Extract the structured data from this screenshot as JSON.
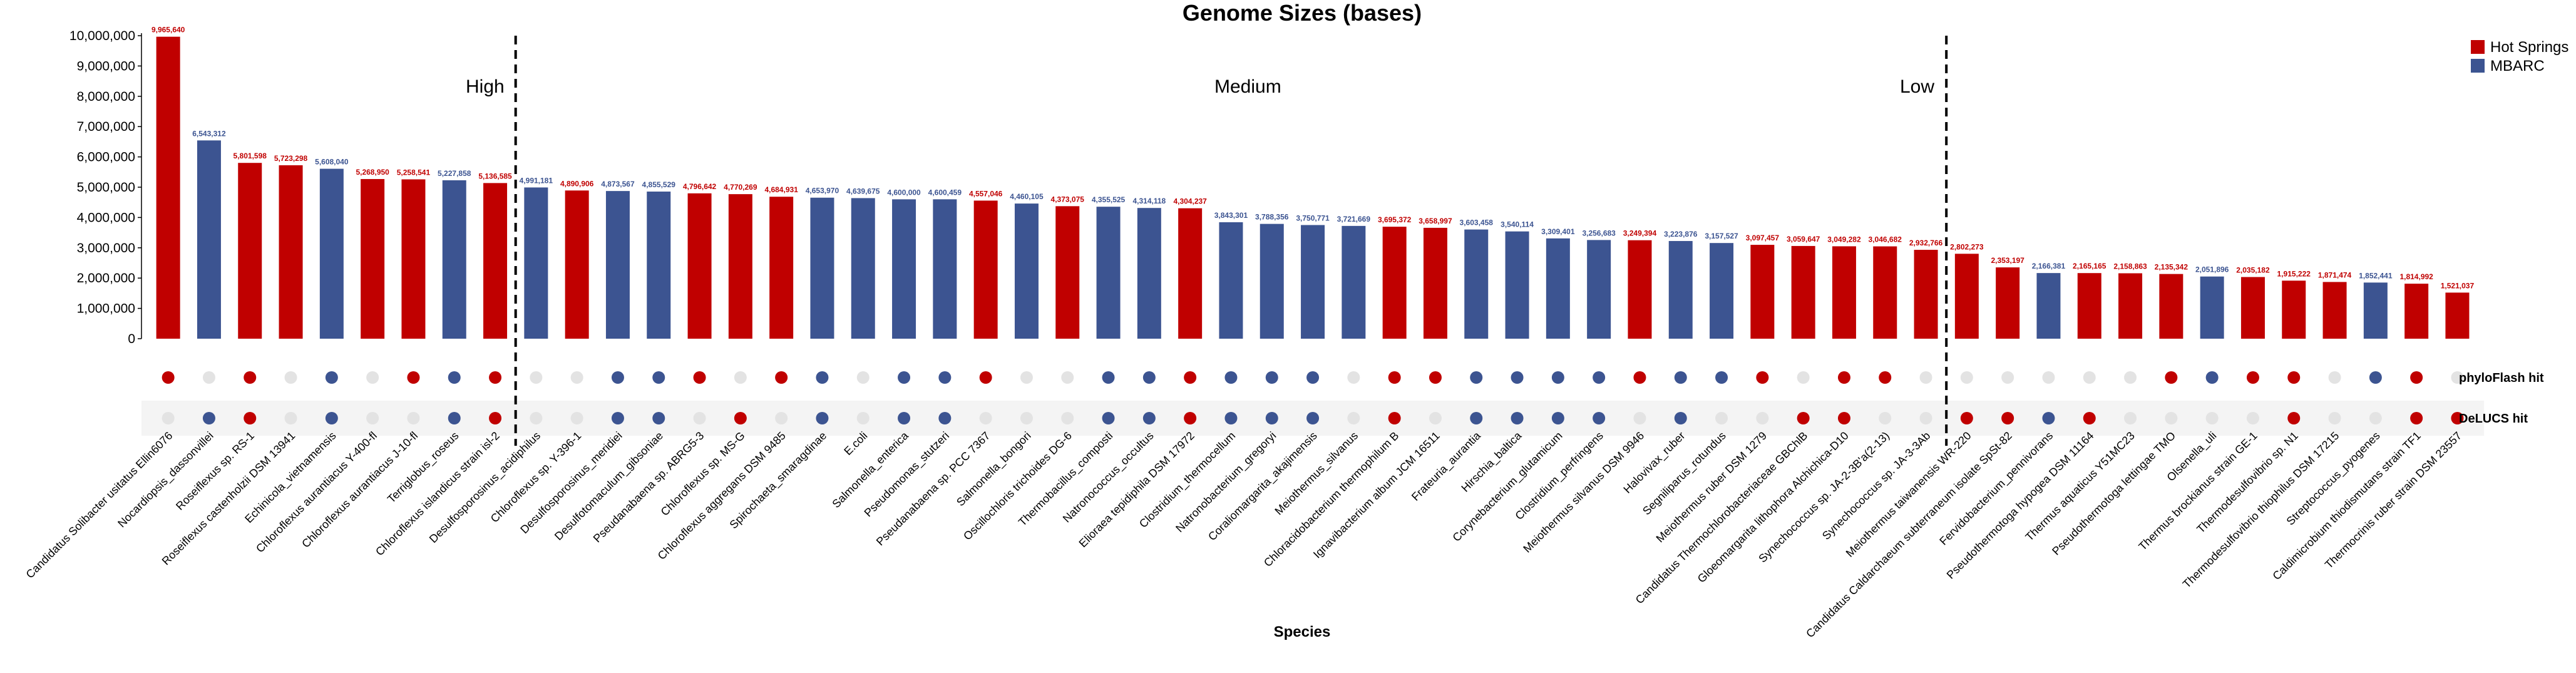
{
  "chart_data": {
    "type": "bar",
    "title": "Genome Sizes (bases)",
    "xlabel": "Species",
    "ylabel": "",
    "ylim": [
      0,
      10000000
    ],
    "yticks": [
      0,
      1000000,
      2000000,
      3000000,
      4000000,
      5000000,
      6000000,
      7000000,
      8000000,
      9000000,
      10000000
    ],
    "ytick_labels": [
      "0",
      "1,000,000",
      "2,000,000",
      "3,000,000",
      "4,000,000",
      "5,000,000",
      "6,000,000",
      "7,000,000",
      "8,000,000",
      "9,000,000",
      "10,000,000"
    ],
    "legend": {
      "placement": "top-right",
      "entries": [
        {
          "name": "Hot Springs",
          "color": "#c00000"
        },
        {
          "name": "MBARC",
          "color": "#3c5491"
        }
      ]
    },
    "regions": [
      "High",
      "Medium",
      "Low"
    ],
    "region_boundaries_after_index": [
      8,
      43
    ],
    "indicator_rows": [
      "phyloFlash hit",
      "DeLUCS hit"
    ],
    "colors": {
      "hot_springs": "#c00000",
      "mbarc": "#3c5491",
      "miss": "#e3e3e3",
      "row_band": "#f4f4f4"
    },
    "bars": [
      {
        "species": "Candidatus Solibacter usitatus Ellin6076",
        "value": 9965640,
        "label": "9,965,640",
        "group": "Hot Springs",
        "phyloflash": true,
        "delucs": false
      },
      {
        "species": "Nocardiopsis_dassonvillei",
        "value": 6543312,
        "label": "6,543,312",
        "group": "MBARC",
        "phyloflash": false,
        "delucs": true
      },
      {
        "species": "Roseiflexus sp. RS-1",
        "value": 5801598,
        "label": "5,801,598",
        "group": "Hot Springs",
        "phyloflash": true,
        "delucs": true
      },
      {
        "species": "Roseiflexus castenholzii DSM 13941",
        "value": 5723298,
        "label": "5,723,298",
        "group": "Hot Springs",
        "phyloflash": false,
        "delucs": false
      },
      {
        "species": "Echinicola_vietnamensis",
        "value": 5608040,
        "label": "5,608,040",
        "group": "MBARC",
        "phyloflash": true,
        "delucs": true
      },
      {
        "species": "Chloroflexus aurantiacus Y-400-fl",
        "value": 5268950,
        "label": "5,268,950",
        "group": "Hot Springs",
        "phyloflash": false,
        "delucs": false
      },
      {
        "species": "Chloroflexus aurantiacus J-10-fl",
        "value": 5258541,
        "label": "5,258,541",
        "group": "Hot Springs",
        "phyloflash": true,
        "delucs": false
      },
      {
        "species": "Terriglobus_roseus",
        "value": 5227858,
        "label": "5,227,858",
        "group": "MBARC",
        "phyloflash": true,
        "delucs": true
      },
      {
        "species": "Chloroflexus islandicus strain isl-2",
        "value": 5136585,
        "label": "5,136,585",
        "group": "Hot Springs",
        "phyloflash": true,
        "delucs": true
      },
      {
        "species": "Desulfosporosinus_acidiphilus",
        "value": 4991181,
        "label": "4,991,181",
        "group": "MBARC",
        "phyloflash": false,
        "delucs": false
      },
      {
        "species": "Chloroflexus sp. Y-396-1",
        "value": 4890906,
        "label": "4,890,906",
        "group": "Hot Springs",
        "phyloflash": false,
        "delucs": false
      },
      {
        "species": "Desulfosporosinus_meridiei",
        "value": 4873567,
        "label": "4,873,567",
        "group": "MBARC",
        "phyloflash": true,
        "delucs": true
      },
      {
        "species": "Desulfotomaculum_gibsoniae",
        "value": 4855529,
        "label": "4,855,529",
        "group": "MBARC",
        "phyloflash": true,
        "delucs": true
      },
      {
        "species": "Pseudanabaena sp. ABRG5-3",
        "value": 4796642,
        "label": "4,796,642",
        "group": "Hot Springs",
        "phyloflash": true,
        "delucs": false
      },
      {
        "species": "Chloroflexus sp. MS-G",
        "value": 4770269,
        "label": "4,770,269",
        "group": "Hot Springs",
        "phyloflash": false,
        "delucs": true
      },
      {
        "species": "Chloroflexus aggregans DSM 9485",
        "value": 4684931,
        "label": "4,684,931",
        "group": "Hot Springs",
        "phyloflash": true,
        "delucs": false
      },
      {
        "species": "Spirochaeta_smaragdinae",
        "value": 4653970,
        "label": "4,653,970",
        "group": "MBARC",
        "phyloflash": true,
        "delucs": true
      },
      {
        "species": "E.coli",
        "value": 4639675,
        "label": "4,639,675",
        "group": "MBARC",
        "phyloflash": false,
        "delucs": false
      },
      {
        "species": "Salmonella_enterica",
        "value": 4600000,
        "label": "4,600,000",
        "group": "MBARC",
        "phyloflash": true,
        "delucs": true
      },
      {
        "species": "Pseudomonas_stutzeri",
        "value": 4600459,
        "label": "4,600,459",
        "group": "MBARC",
        "phyloflash": true,
        "delucs": true
      },
      {
        "species": "Pseudanabaena sp. PCC 7367",
        "value": 4557046,
        "label": "4,557,046",
        "group": "Hot Springs",
        "phyloflash": true,
        "delucs": false
      },
      {
        "species": "Salmonella_bongori",
        "value": 4460105,
        "label": "4,460,105",
        "group": "MBARC",
        "phyloflash": false,
        "delucs": false
      },
      {
        "species": "Oscillochloris trichoides DG-6",
        "value": 4373075,
        "label": "4,373,075",
        "group": "Hot Springs",
        "phyloflash": false,
        "delucs": false
      },
      {
        "species": "Thermobacillus_composti",
        "value": 4355525,
        "label": "4,355,525",
        "group": "MBARC",
        "phyloflash": true,
        "delucs": true
      },
      {
        "species": "Natronococcus_occultus",
        "value": 4314118,
        "label": "4,314,118",
        "group": "MBARC",
        "phyloflash": true,
        "delucs": true
      },
      {
        "species": "Elioraea tepidiphila DSM 17972",
        "value": 4304237,
        "label": "4,304,237",
        "group": "Hot Springs",
        "phyloflash": true,
        "delucs": true
      },
      {
        "species": "Clostridium_thermocellum",
        "value": 3843301,
        "label": "3,843,301",
        "group": "MBARC",
        "phyloflash": true,
        "delucs": true
      },
      {
        "species": "Natronobacterium_gregoryi",
        "value": 3788356,
        "label": "3,788,356",
        "group": "MBARC",
        "phyloflash": true,
        "delucs": true
      },
      {
        "species": "Coraliomargarita_akajimensis",
        "value": 3750771,
        "label": "3,750,771",
        "group": "MBARC",
        "phyloflash": true,
        "delucs": true
      },
      {
        "species": "Meiothermus_silvanus",
        "value": 3721669,
        "label": "3,721,669",
        "group": "MBARC",
        "phyloflash": false,
        "delucs": false
      },
      {
        "species": "Chloracidobacterium thermophilum B",
        "value": 3695372,
        "label": "3,695,372",
        "group": "Hot Springs",
        "phyloflash": true,
        "delucs": true
      },
      {
        "species": "Ignavibacterium album JCM 16511",
        "value": 3658997,
        "label": "3,658,997",
        "group": "Hot Springs",
        "phyloflash": true,
        "delucs": false
      },
      {
        "species": "Frateuria_aurantia",
        "value": 3603458,
        "label": "3,603,458",
        "group": "MBARC",
        "phyloflash": true,
        "delucs": true
      },
      {
        "species": "Hirschia_baltica",
        "value": 3540114,
        "label": "3,540,114",
        "group": "MBARC",
        "phyloflash": true,
        "delucs": true
      },
      {
        "species": "Corynebacterium_glutamicum",
        "value": 3309401,
        "label": "3,309,401",
        "group": "MBARC",
        "phyloflash": true,
        "delucs": true
      },
      {
        "species": "Clostridium_perfringens",
        "value": 3256683,
        "label": "3,256,683",
        "group": "MBARC",
        "phyloflash": true,
        "delucs": true
      },
      {
        "species": "Meiothermus silvanus DSM 9946",
        "value": 3249394,
        "label": "3,249,394",
        "group": "Hot Springs",
        "phyloflash": true,
        "delucs": false
      },
      {
        "species": "Halovivax_ruber",
        "value": 3223876,
        "label": "3,223,876",
        "group": "MBARC",
        "phyloflash": true,
        "delucs": true
      },
      {
        "species": "Segniliparus_rotundus",
        "value": 3157527,
        "label": "3,157,527",
        "group": "MBARC",
        "phyloflash": true,
        "delucs": false
      },
      {
        "species": "Meiothermus ruber DSM 1279",
        "value": 3097457,
        "label": "3,097,457",
        "group": "Hot Springs",
        "phyloflash": true,
        "delucs": false
      },
      {
        "species": "Candidatus Thermochlorobacteriaceae GBChlB",
        "value": 3059647,
        "label": "3,059,647",
        "group": "Hot Springs",
        "phyloflash": false,
        "delucs": true
      },
      {
        "species": "Gloeomargarita lithophora Alchichica-D10",
        "value": 3049282,
        "label": "3,049,282",
        "group": "Hot Springs",
        "phyloflash": true,
        "delucs": true
      },
      {
        "species": "Synechococcus sp. JA-2-3B'a(2-13)",
        "value": 3046682,
        "label": "3,046,682",
        "group": "Hot Springs",
        "phyloflash": true,
        "delucs": false
      },
      {
        "species": "Synechococcus sp. JA-3-3Ab",
        "value": 2932766,
        "label": "2,932,766",
        "group": "Hot Springs",
        "phyloflash": false,
        "delucs": false
      },
      {
        "species": "Meiothermus taiwanensis WR-220",
        "value": 2802273,
        "label": "2,802,273",
        "group": "Hot Springs",
        "phyloflash": false,
        "delucs": true
      },
      {
        "species": "Candidatus Caldarchaeum subterraneum isolate SpSt-82",
        "value": 2353197,
        "label": "2,353,197",
        "group": "Hot Springs",
        "phyloflash": false,
        "delucs": true
      },
      {
        "species": "Fervidobacterium_pennivorans",
        "value": 2166381,
        "label": "2,166,381",
        "group": "MBARC",
        "phyloflash": false,
        "delucs": true
      },
      {
        "species": "Pseudothermotoga hypogea DSM 11164",
        "value": 2165165,
        "label": "2,165,165",
        "group": "Hot Springs",
        "phyloflash": false,
        "delucs": true
      },
      {
        "species": "Thermus aquaticus Y51MC23",
        "value": 2158863,
        "label": "2,158,863",
        "group": "Hot Springs",
        "phyloflash": false,
        "delucs": false
      },
      {
        "species": "Pseudothermotoga lettingae TMO",
        "value": 2135342,
        "label": "2,135,342",
        "group": "Hot Springs",
        "phyloflash": true,
        "delucs": false
      },
      {
        "species": "Olsenella_uli",
        "value": 2051896,
        "label": "2,051,896",
        "group": "MBARC",
        "phyloflash": true,
        "delucs": false
      },
      {
        "species": "Thermus brockianus strain GE-1",
        "value": 2035182,
        "label": "2,035,182",
        "group": "Hot Springs",
        "phyloflash": true,
        "delucs": false
      },
      {
        "species": "Thermodesulfovibrio sp. N1",
        "value": 1915222,
        "label": "1,915,222",
        "group": "Hot Springs",
        "phyloflash": true,
        "delucs": true
      },
      {
        "species": "Thermodesulfovibrio thiophilus DSM 17215",
        "value": 1871474,
        "label": "1,871,474",
        "group": "Hot Springs",
        "phyloflash": false,
        "delucs": false
      },
      {
        "species": "Streptococcus_pyogenes",
        "value": 1852441,
        "label": "1,852,441",
        "group": "MBARC",
        "phyloflash": true,
        "delucs": false
      },
      {
        "species": "Caldimicrobium thiodismutans strain TF1",
        "value": 1814992,
        "label": "1,814,992",
        "group": "Hot Springs",
        "phyloflash": true,
        "delucs": true
      },
      {
        "species": "Thermocrinis ruber strain DSM 23557",
        "value": 1521037,
        "label": "1,521,037",
        "group": "Hot Springs",
        "phyloflash": false,
        "delucs": true
      }
    ]
  }
}
